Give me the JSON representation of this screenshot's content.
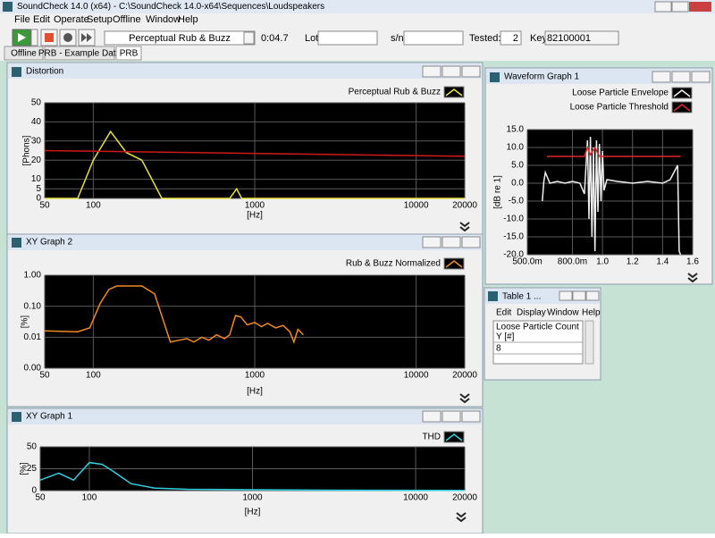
{
  "app": {
    "title": "SoundCheck 14.0 (x64)  - C:\\SoundCheck 14.0-x64\\Sequences\\Loudspeakers"
  },
  "menu": [
    "File",
    "Edit",
    "Operate",
    "Setup",
    "Offline",
    "Window",
    "Help"
  ],
  "toolbar": {
    "sequence": "Perceptual Rub & Buzz",
    "time": "0:04.7",
    "lot_label": "Lot:",
    "sn_label": "s/n:",
    "tested_label": "Tested:",
    "tested": "2",
    "key_label": "Key",
    "key": "82100001"
  },
  "tabs": [
    "Offline",
    "PRB - Example Data",
    "PRB"
  ],
  "chart_data": [
    {
      "type": "line",
      "title": "Distortion",
      "xscale": "log",
      "grid": true,
      "xlabel": "[Hz]",
      "ylabel": "[Phons]",
      "xlim": [
        50,
        20000
      ],
      "xticks": [
        50,
        100,
        1000,
        10000,
        20000
      ],
      "ylim": [
        0,
        50
      ],
      "yticks": [
        0,
        5,
        10,
        20,
        30,
        40,
        50
      ],
      "series": [
        {
          "name": "Perceptual Rub & Buzz",
          "color": "#e8e040",
          "x": [
            50,
            80,
            100,
            128,
            160,
            200,
            266,
            700,
            773,
            830,
            20000
          ],
          "values": [
            0,
            0,
            20,
            35,
            24,
            20,
            0,
            0,
            5,
            0,
            0
          ]
        },
        {
          "color": "#d01818",
          "x": [
            50,
            20000
          ],
          "values": [
            25,
            22
          ]
        }
      ]
    },
    {
      "type": "line",
      "title": "XY Graph 2",
      "xscale": "log",
      "yscale": "log",
      "grid": true,
      "xlabel": "[Hz]",
      "ylabel": "[%]",
      "xlim": [
        50,
        20000
      ],
      "xticks": [
        50,
        100,
        1000,
        10000,
        20000
      ],
      "ylim": [
        0.001,
        1
      ],
      "yticks": [
        {
          "value": 0.001,
          "label": "0.00"
        },
        {
          "value": 0.01,
          "label": "0.01"
        },
        {
          "value": 0.1,
          "label": "0.10"
        },
        {
          "value": 1,
          "label": "1.00"
        }
      ],
      "series": [
        {
          "name": "Rub & Buzz Normalized",
          "color": "#f08a20",
          "x": [
            50,
            80,
            95,
            110,
            125,
            140,
            200,
            240,
            300,
            340,
            380,
            420,
            470,
            520,
            580,
            650,
            700,
            760,
            820,
            900,
            1000,
            1100,
            1200,
            1350,
            1500,
            1650,
            1750,
            1850,
            2000
          ],
          "values": [
            0.016,
            0.015,
            0.02,
            0.12,
            0.35,
            0.45,
            0.45,
            0.25,
            0.007,
            0.008,
            0.009,
            0.007,
            0.01,
            0.008,
            0.012,
            0.009,
            0.012,
            0.05,
            0.045,
            0.025,
            0.03,
            0.022,
            0.028,
            0.02,
            0.024,
            0.015,
            0.007,
            0.018,
            0.012
          ]
        }
      ]
    },
    {
      "type": "line",
      "title": "XY Graph 1",
      "xscale": "log",
      "grid": true,
      "xlabel": "[Hz]",
      "ylabel": "[%]",
      "xlim": [
        50,
        20000
      ],
      "xticks": [
        50,
        100,
        1000,
        10000,
        20000
      ],
      "ylim": [
        0,
        50
      ],
      "yticks": [
        0,
        25,
        50
      ],
      "series": [
        {
          "name": "THD",
          "color": "#30d0e0",
          "x": [
            50,
            65,
            80,
            100,
            120,
            140,
            180,
            250,
            400,
            1000,
            3000,
            20000
          ],
          "values": [
            12,
            20,
            12,
            32,
            30,
            22,
            8,
            3,
            1.5,
            1,
            0.5,
            0.2
          ]
        }
      ]
    },
    {
      "type": "line",
      "title": "Waveform Graph 1",
      "grid": true,
      "ylabel": "[dB re 1]",
      "xlim": [
        0.5,
        1.6
      ],
      "xticks": [
        {
          "value": 0.5,
          "label": "500.0m"
        },
        {
          "value": 0.8,
          "label": "800.0m"
        },
        {
          "value": 1.0,
          "label": "1.0"
        },
        1.2,
        1.4,
        1.6
      ],
      "ylim": [
        -20,
        15
      ],
      "yticks": [
        {
          "value": -20,
          "label": "-20.0"
        },
        {
          "value": -15,
          "label": "-15.0"
        },
        {
          "value": -10,
          "label": "-10.0"
        },
        {
          "value": -5,
          "label": "-5.0"
        },
        {
          "value": 0,
          "label": "0.0"
        },
        {
          "value": 5,
          "label": "5.0"
        },
        {
          "value": 10,
          "label": "10.0"
        },
        {
          "value": 15,
          "label": "15.0"
        }
      ],
      "series": [
        {
          "name": "Loose Particle Envelope",
          "color": "#f0f0f0",
          "x": [
            0.6,
            0.61,
            0.62,
            0.65,
            0.7,
            0.75,
            0.8,
            0.85,
            0.88,
            0.9,
            0.91,
            0.92,
            0.93,
            0.94,
            0.95,
            0.96,
            0.97,
            0.98,
            0.99,
            1.0,
            1.01,
            1.03,
            1.1,
            1.2,
            1.3,
            1.4,
            1.45,
            1.5,
            1.51,
            1.52
          ],
          "values": [
            -5,
            0.5,
            3,
            0,
            0.5,
            0,
            0.5,
            0,
            -3,
            12,
            -10,
            13,
            -15,
            10,
            -19,
            12,
            -8,
            11,
            -5,
            9,
            -2,
            1,
            0.5,
            0,
            0.5,
            0,
            1,
            5,
            -19,
            -20
          ]
        },
        {
          "name": "Loose Particle Threshold",
          "color": "#e02828",
          "x": [
            0.63,
            0.88,
            0.9,
            0.92,
            0.95,
            0.98,
            1.52
          ],
          "values": [
            7.5,
            7.5,
            10,
            8,
            10,
            7.5,
            7.5
          ]
        }
      ]
    }
  ],
  "table": {
    "title": "Table 1 ...",
    "menu": [
      "Edit",
      "Display",
      "Window",
      "Help"
    ],
    "header": [
      "Loose Particle Count",
      "Y [#]"
    ],
    "rows": [
      [
        "8"
      ]
    ]
  }
}
